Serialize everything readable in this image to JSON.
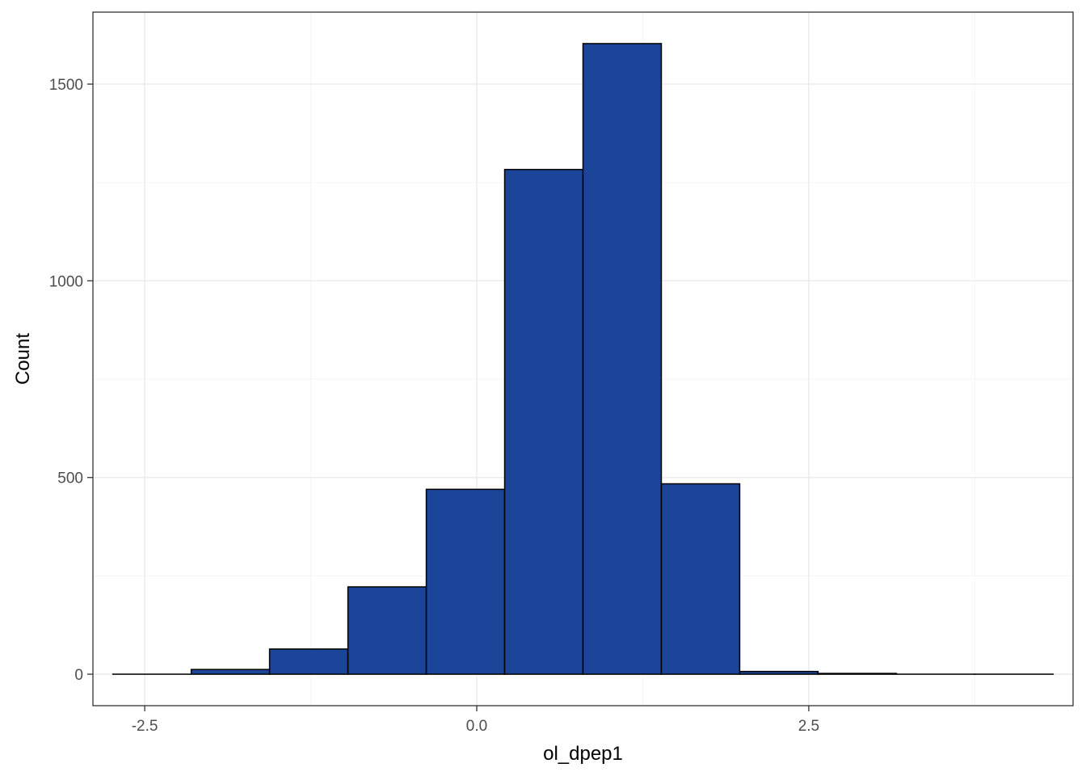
{
  "chart_data": {
    "type": "bar",
    "subtype": "histogram",
    "xlabel": "ol_dpep1",
    "ylabel": "Count",
    "bins": [
      {
        "x0": -2.74,
        "x1": -2.15,
        "count": 0
      },
      {
        "x0": -2.15,
        "x1": -1.56,
        "count": 12
      },
      {
        "x0": -1.56,
        "x1": -0.97,
        "count": 64
      },
      {
        "x0": -0.97,
        "x1": -0.38,
        "count": 222
      },
      {
        "x0": -0.38,
        "x1": 0.21,
        "count": 470
      },
      {
        "x0": 0.21,
        "x1": 0.8,
        "count": 1283
      },
      {
        "x0": 0.8,
        "x1": 1.39,
        "count": 1603
      },
      {
        "x0": 1.39,
        "x1": 1.98,
        "count": 484
      },
      {
        "x0": 1.98,
        "x1": 2.57,
        "count": 7
      },
      {
        "x0": 2.57,
        "x1": 3.16,
        "count": 2
      },
      {
        "x0": 3.16,
        "x1": 3.75,
        "count": 0
      },
      {
        "x0": 3.75,
        "x1": 4.34,
        "count": 0
      }
    ],
    "xlim": [
      -2.89,
      4.49
    ],
    "ylim": [
      -80,
      1683
    ],
    "x_ticks": [
      {
        "value": -2.5,
        "label": "-2.5"
      },
      {
        "value": 0.0,
        "label": "0.0"
      },
      {
        "value": 2.5,
        "label": "2.5"
      }
    ],
    "y_ticks": [
      {
        "value": 0,
        "label": "0"
      },
      {
        "value": 500,
        "label": "500"
      },
      {
        "value": 1000,
        "label": "1000"
      },
      {
        "value": 1500,
        "label": "1500"
      }
    ],
    "x_minor_ticks": [
      -1.25,
      1.25,
      3.75
    ],
    "y_minor_ticks": [
      250,
      750,
      1250
    ],
    "grid": true,
    "legend": "none",
    "colors": {
      "bar_fill": "#1a4599",
      "bar_outline": "#000000",
      "grid_major": "#ebebeb",
      "grid_minor": "#f5f5f5",
      "panel_border": "#333333"
    }
  }
}
